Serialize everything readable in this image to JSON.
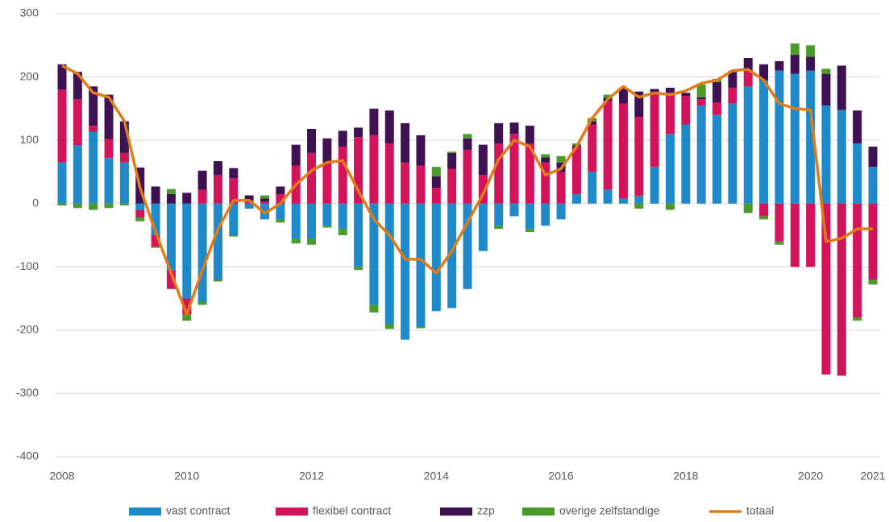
{
  "chart_data": {
    "type": "bar",
    "stacked": true,
    "categories": [
      "2008",
      null,
      null,
      null,
      null,
      null,
      null,
      null,
      "2010",
      null,
      null,
      null,
      null,
      null,
      null,
      null,
      "2012",
      null,
      null,
      null,
      null,
      null,
      null,
      null,
      "2014",
      null,
      null,
      null,
      null,
      null,
      null,
      null,
      "2016",
      null,
      null,
      null,
      null,
      null,
      null,
      null,
      "2018",
      null,
      null,
      null,
      null,
      null,
      null,
      null,
      "2020",
      null,
      null,
      null,
      "2021"
    ],
    "ylim": [
      -400,
      300
    ],
    "yticks": [
      -400,
      -300,
      -200,
      -100,
      0,
      100,
      200,
      300
    ],
    "grid": true,
    "legend": "bottom",
    "series": [
      {
        "name": "vast contract",
        "color": "#1f8ac9",
        "values": [
          65,
          92,
          113,
          72,
          65,
          -10,
          -50,
          -105,
          -150,
          -155,
          -120,
          -50,
          -8,
          -25,
          -25,
          -55,
          -55,
          -35,
          -40,
          -100,
          -160,
          -190,
          -215,
          -195,
          -170,
          -165,
          -135,
          -75,
          -35,
          -20,
          -40,
          -35,
          -25,
          15,
          50,
          22,
          8,
          12,
          58,
          110,
          125,
          155,
          140,
          158,
          185,
          195,
          210,
          205,
          210,
          155,
          148,
          95,
          58
        ]
      },
      {
        "name": "flexibel contract",
        "color": "#d4145a",
        "values": [
          115,
          73,
          10,
          30,
          15,
          -12,
          -18,
          -30,
          -25,
          22,
          45,
          40,
          5,
          3,
          15,
          60,
          80,
          65,
          90,
          105,
          108,
          95,
          65,
          60,
          25,
          55,
          85,
          45,
          95,
          110,
          95,
          65,
          50,
          75,
          75,
          140,
          150,
          125,
          115,
          65,
          45,
          10,
          20,
          25,
          25,
          -20,
          -60,
          -100,
          -100,
          -270,
          -272,
          -180,
          -120
        ]
      },
      {
        "name": "zzp",
        "color": "#3d1152",
        "values": [
          40,
          43,
          62,
          70,
          50,
          57,
          27,
          15,
          17,
          30,
          22,
          16,
          8,
          5,
          12,
          33,
          38,
          38,
          25,
          15,
          42,
          52,
          62,
          48,
          18,
          25,
          18,
          48,
          32,
          18,
          28,
          8,
          15,
          2,
          5,
          5,
          25,
          40,
          8,
          8,
          5,
          3,
          32,
          25,
          20,
          25,
          15,
          30,
          22,
          50,
          70,
          52,
          32
        ]
      },
      {
        "name": "overige zelfstandige",
        "color": "#4b9b2c",
        "values": [
          -3,
          -7,
          -10,
          -7,
          -3,
          -6,
          -2,
          8,
          -10,
          -5,
          -3,
          -2,
          0,
          5,
          -5,
          -8,
          -10,
          -3,
          -10,
          -5,
          -12,
          -8,
          0,
          -2,
          15,
          2,
          7,
          0,
          -5,
          0,
          -5,
          5,
          10,
          3,
          5,
          5,
          0,
          -8,
          0,
          -10,
          0,
          20,
          5,
          2,
          -15,
          -5,
          -5,
          18,
          18,
          8,
          0,
          -5,
          -8
        ]
      },
      {
        "name": "totaal",
        "color": "#e07b1a",
        "type": "line",
        "values": [
          218,
          205,
          175,
          168,
          130,
          25,
          -45,
          -110,
          -175,
          -105,
          -40,
          5,
          5,
          -15,
          0,
          30,
          52,
          65,
          68,
          20,
          -25,
          -50,
          -88,
          -88,
          -110,
          -75,
          -30,
          15,
          70,
          100,
          90,
          45,
          55,
          90,
          135,
          165,
          185,
          168,
          175,
          172,
          178,
          190,
          195,
          210,
          212,
          195,
          158,
          150,
          148,
          -60,
          -55,
          -40,
          -40
        ]
      }
    ]
  }
}
